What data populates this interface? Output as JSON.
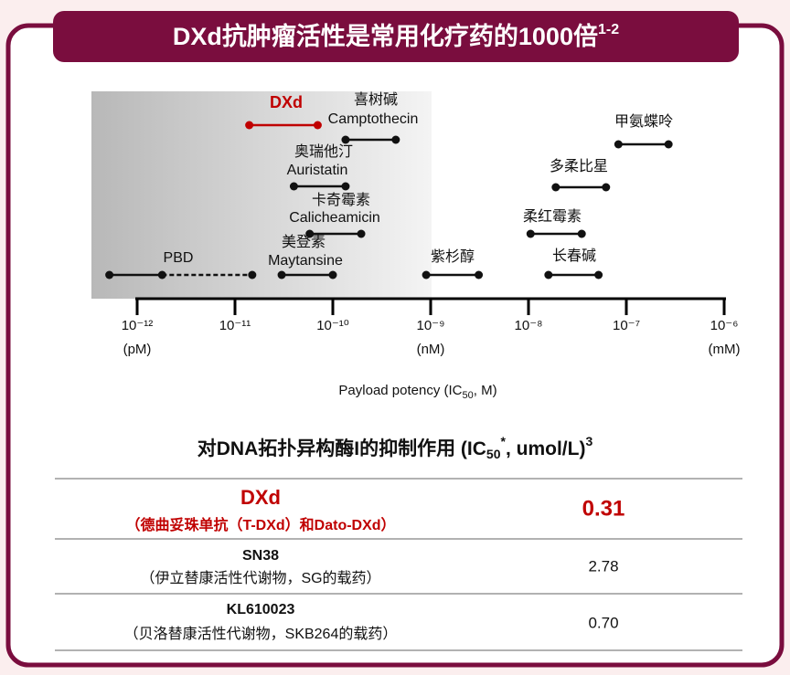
{
  "header": {
    "title": "DXd抗肿瘤活性是常用化疗药的1000倍",
    "title_sup": "1-2"
  },
  "chart_data": {
    "type": "range",
    "log_x": true,
    "xlim": [
      1e-12,
      1e-06
    ],
    "xticks": [
      {
        "value": 1e-12,
        "label": "10⁻¹²"
      },
      {
        "value": 1e-11,
        "label": "10⁻¹¹"
      },
      {
        "value": 1e-10,
        "label": "10⁻¹⁰"
      },
      {
        "value": 1e-09,
        "label": "10⁻⁹"
      },
      {
        "value": 1e-08,
        "label": "10⁻⁸"
      },
      {
        "value": 1e-07,
        "label": "10⁻⁷"
      },
      {
        "value": 1e-06,
        "label": "10⁻⁶"
      }
    ],
    "unit_labels": [
      {
        "value": 1e-12,
        "label": "(pM)"
      },
      {
        "value": 1e-09,
        "label": "(nM)"
      },
      {
        "value": 1e-06,
        "label": "(mM)"
      }
    ],
    "xlabel_parts": [
      "Payload potency (IC",
      "50",
      ", M)"
    ],
    "items": [
      {
        "labels": [
          "DXd"
        ],
        "low": 1.4e-11,
        "high": 7e-11,
        "color": "#c00000"
      },
      {
        "labels": [
          "喜树碱",
          "Camptothecin"
        ],
        "low": 1.35e-10,
        "high": 4.4e-10,
        "color": "#111111"
      },
      {
        "labels": [
          "奥瑞他汀",
          "Auristatin"
        ],
        "low": 4e-11,
        "high": 1.35e-10,
        "color": "#111111"
      },
      {
        "labels": [
          "卡奇霉素",
          "Calicheamicin"
        ],
        "low": 5.8e-11,
        "high": 1.95e-10,
        "color": "#111111"
      },
      {
        "labels": [
          "美登素",
          "Maytansine"
        ],
        "low": 3e-11,
        "high": 1e-10,
        "color": "#111111"
      },
      {
        "labels": [
          "PBD"
        ],
        "low": 5.2e-13,
        "mid": 1.8e-12,
        "high": 1.5e-11,
        "color": "#111111"
      },
      {
        "labels": [
          "紫杉醇"
        ],
        "low": 9e-10,
        "high": 3.1e-09,
        "color": "#111111"
      },
      {
        "labels": [
          "长春碱"
        ],
        "low": 1.6e-08,
        "high": 5.2e-08,
        "color": "#111111"
      },
      {
        "labels": [
          "柔红霉素"
        ],
        "low": 1.05e-08,
        "high": 3.5e-08,
        "color": "#111111"
      },
      {
        "labels": [
          "多柔比星"
        ],
        "low": 1.9e-08,
        "high": 6.2e-08,
        "color": "#111111"
      },
      {
        "labels": [
          "甲氨蝶呤"
        ],
        "low": 8.3e-08,
        "high": 2.7e-07,
        "color": "#111111"
      }
    ]
  },
  "table": {
    "title_parts": [
      "对DNA拓扑异构酶I的抑制作用 (IC",
      "50",
      "*",
      ", umol/L)",
      "3"
    ],
    "rows": [
      [
        "DXd",
        "（德曲妥珠单抗（T-DXd）和Dato-DXd）",
        "0.31"
      ],
      [
        "SN38",
        "（伊立替康活性代谢物，SG的载药）",
        "2.78"
      ],
      [
        "KL610023",
        "（贝洛替康活性代谢物，SKB264的载药）",
        "0.70"
      ]
    ]
  }
}
